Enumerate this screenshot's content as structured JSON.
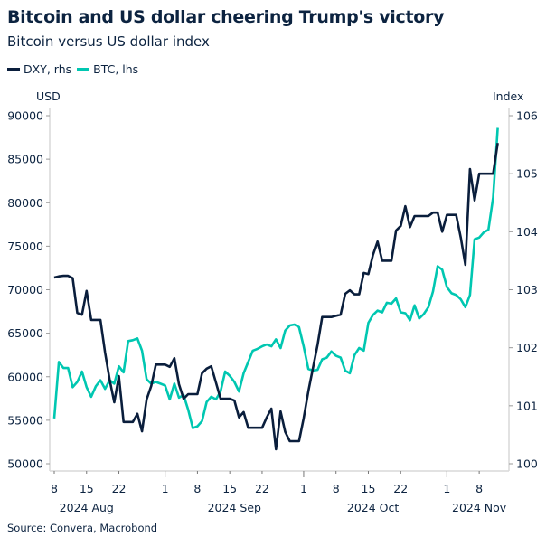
{
  "header": {
    "title": "Bitcoin and US dollar cheering Trump's victory",
    "subtitle": "Bitcoin versus US dollar index"
  },
  "source": "Source: Convera, Macrobond",
  "colors": {
    "dxy": "#0a1e3c",
    "btc": "#00c7b1",
    "axis": "#d9d9d9",
    "text": "#0c2340"
  },
  "chart_data": {
    "type": "line",
    "title": "Bitcoin and US dollar cheering Trump's victory",
    "subtitle": "Bitcoin versus US dollar index",
    "legend_position": "top-left",
    "grid": false,
    "y_left": {
      "label": "USD",
      "range": [
        50000,
        90000
      ],
      "ticks": [
        "50000",
        "55000",
        "60000",
        "65000",
        "70000",
        "75000",
        "80000",
        "85000",
        "90000"
      ]
    },
    "y_right": {
      "label": "Index",
      "range": [
        100,
        106
      ],
      "ticks": [
        "100",
        "101",
        "102",
        "103",
        "104",
        "105",
        "106"
      ]
    },
    "x_ticks": [
      {
        "date": "2024-08-08",
        "label": "8"
      },
      {
        "date": "2024-08-15",
        "label": "15"
      },
      {
        "date": "2024-08-22",
        "label": "22"
      },
      {
        "date": "2024-09-01",
        "label": "1"
      },
      {
        "date": "2024-09-08",
        "label": "8"
      },
      {
        "date": "2024-09-15",
        "label": "15"
      },
      {
        "date": "2024-09-22",
        "label": "22"
      },
      {
        "date": "2024-10-01",
        "label": "1"
      },
      {
        "date": "2024-10-08",
        "label": "8"
      },
      {
        "date": "2024-10-15",
        "label": "15"
      },
      {
        "date": "2024-10-22",
        "label": "22"
      },
      {
        "date": "2024-11-01",
        "label": "1"
      },
      {
        "date": "2024-11-08",
        "label": "8"
      }
    ],
    "x_months": [
      {
        "label": "2024 Aug",
        "center": "2024-08-15"
      },
      {
        "label": "2024 Sep",
        "center": "2024-09-16"
      },
      {
        "label": "2024 Oct",
        "center": "2024-10-16"
      },
      {
        "label": "2024 Nov",
        "center": "2024-11-08"
      }
    ],
    "x": [
      "2024-08-08",
      "2024-08-09",
      "2024-08-10",
      "2024-08-11",
      "2024-08-12",
      "2024-08-13",
      "2024-08-14",
      "2024-08-15",
      "2024-08-16",
      "2024-08-17",
      "2024-08-18",
      "2024-08-19",
      "2024-08-20",
      "2024-08-21",
      "2024-08-22",
      "2024-08-23",
      "2024-08-24",
      "2024-08-25",
      "2024-08-26",
      "2024-08-27",
      "2024-08-28",
      "2024-08-29",
      "2024-08-30",
      "2024-08-31",
      "2024-09-01",
      "2024-09-02",
      "2024-09-03",
      "2024-09-04",
      "2024-09-05",
      "2024-09-06",
      "2024-09-07",
      "2024-09-08",
      "2024-09-09",
      "2024-09-10",
      "2024-09-11",
      "2024-09-12",
      "2024-09-13",
      "2024-09-14",
      "2024-09-15",
      "2024-09-16",
      "2024-09-17",
      "2024-09-18",
      "2024-09-19",
      "2024-09-20",
      "2024-09-21",
      "2024-09-22",
      "2024-09-23",
      "2024-09-24",
      "2024-09-25",
      "2024-09-26",
      "2024-09-27",
      "2024-09-28",
      "2024-09-29",
      "2024-09-30",
      "2024-10-01",
      "2024-10-02",
      "2024-10-03",
      "2024-10-04",
      "2024-10-05",
      "2024-10-06",
      "2024-10-07",
      "2024-10-08",
      "2024-10-09",
      "2024-10-10",
      "2024-10-11",
      "2024-10-12",
      "2024-10-13",
      "2024-10-14",
      "2024-10-15",
      "2024-10-16",
      "2024-10-17",
      "2024-10-18",
      "2024-10-19",
      "2024-10-20",
      "2024-10-21",
      "2024-10-22",
      "2024-10-23",
      "2024-10-24",
      "2024-10-25",
      "2024-10-26",
      "2024-10-27",
      "2024-10-28",
      "2024-10-29",
      "2024-10-30",
      "2024-10-31",
      "2024-11-01",
      "2024-11-02",
      "2024-11-03",
      "2024-11-04",
      "2024-11-05",
      "2024-11-06",
      "2024-11-07",
      "2024-11-08",
      "2024-11-09",
      "2024-11-10",
      "2024-11-11",
      "2024-11-12"
    ],
    "series": [
      {
        "name": "DXY, rhs",
        "axis": "right",
        "color": "#0a1e3c",
        "values": [
          103.21,
          103.23,
          103.24,
          103.24,
          103.2,
          102.6,
          102.57,
          102.98,
          102.48,
          102.48,
          102.48,
          101.92,
          101.45,
          101.06,
          101.51,
          100.72,
          100.72,
          100.72,
          100.86,
          100.56,
          101.11,
          101.34,
          101.71,
          101.71,
          101.71,
          101.67,
          101.82,
          101.37,
          101.12,
          101.2,
          101.2,
          101.2,
          101.56,
          101.64,
          101.68,
          101.4,
          101.12,
          101.12,
          101.12,
          101.09,
          100.8,
          100.89,
          100.62,
          100.62,
          100.62,
          100.62,
          100.8,
          100.95,
          100.25,
          100.9,
          100.55,
          100.39,
          100.39,
          100.39,
          100.78,
          101.25,
          101.65,
          102.05,
          102.53,
          102.53,
          102.53,
          102.55,
          102.57,
          102.93,
          102.99,
          102.92,
          102.92,
          103.29,
          103.27,
          103.6,
          103.83,
          103.5,
          103.5,
          103.5,
          104.02,
          104.1,
          104.44,
          104.08,
          104.27,
          104.27,
          104.27,
          104.27,
          104.33,
          104.33,
          104.0,
          104.29,
          104.29,
          104.29,
          103.9,
          103.43,
          105.08,
          104.54,
          105.0,
          105.0,
          105.0,
          105.0,
          105.53
        ]
      },
      {
        "name": "BTC, lhs",
        "axis": "left",
        "color": "#00c7b1",
        "values": [
          55200,
          61700,
          61000,
          61000,
          58800,
          59400,
          60600,
          58800,
          57700,
          58900,
          59600,
          58600,
          59600,
          59200,
          61200,
          60500,
          64100,
          64200,
          64400,
          63000,
          59700,
          59200,
          59400,
          59200,
          59000,
          57400,
          59200,
          57600,
          57900,
          56200,
          54100,
          54300,
          54900,
          57100,
          57700,
          57400,
          58300,
          60600,
          60100,
          59400,
          58300,
          60400,
          61700,
          63000,
          63200,
          63500,
          63700,
          63500,
          64300,
          63300,
          65300,
          65900,
          66000,
          65700,
          63500,
          60900,
          60700,
          60800,
          62000,
          62200,
          62900,
          62400,
          62200,
          60700,
          60400,
          62500,
          63300,
          63000,
          66200,
          67100,
          67600,
          67400,
          68500,
          68400,
          69000,
          67400,
          67300,
          66500,
          68200,
          66700,
          67200,
          68000,
          69800,
          72700,
          72300,
          70300,
          69600,
          69400,
          68900,
          68000,
          69400,
          75800,
          76000,
          76600,
          76900,
          80600,
          88600
        ]
      }
    ]
  }
}
